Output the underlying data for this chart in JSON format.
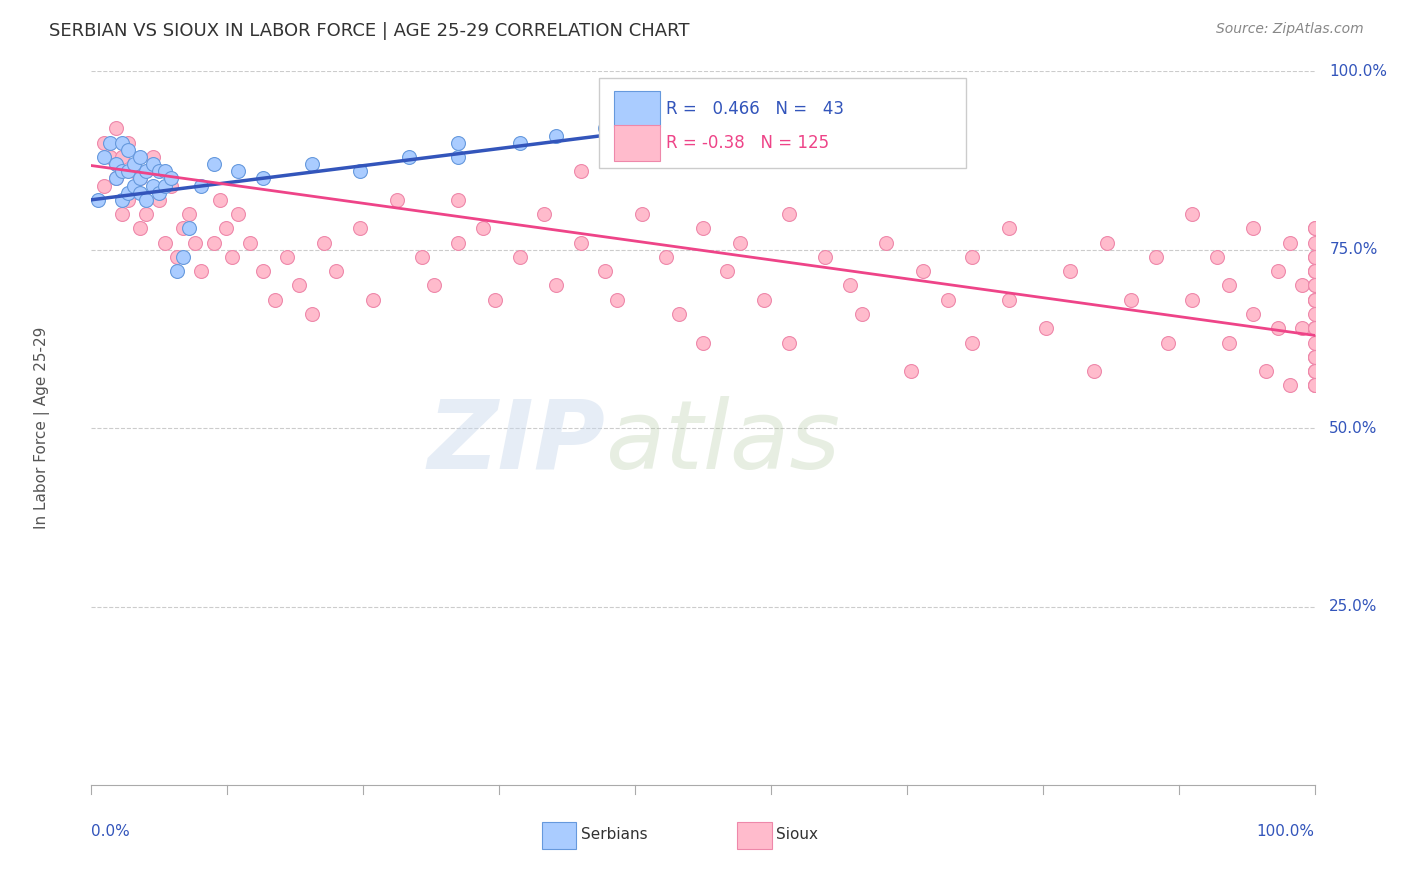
{
  "title": "SERBIAN VS SIOUX IN LABOR FORCE | AGE 25-29 CORRELATION CHART",
  "source_text": "Source: ZipAtlas.com",
  "ylabel": "In Labor Force | Age 25-29",
  "xlim": [
    0.0,
    1.0
  ],
  "ylim": [
    0.0,
    1.0
  ],
  "ytick_labels": [
    "25.0%",
    "50.0%",
    "75.0%",
    "100.0%"
  ],
  "ytick_positions": [
    0.25,
    0.5,
    0.75,
    1.0
  ],
  "r_serbian": 0.466,
  "n_serbian": 43,
  "r_sioux": -0.38,
  "n_sioux": 125,
  "serbian_color": "#aaccff",
  "sioux_color": "#ffbbcc",
  "serbian_edge_color": "#6699dd",
  "sioux_edge_color": "#ee88aa",
  "serbian_line_color": "#3355bb",
  "sioux_line_color": "#ee4488",
  "marker_size": 100,
  "serbian_x": [
    0.005,
    0.01,
    0.015,
    0.02,
    0.02,
    0.025,
    0.025,
    0.025,
    0.03,
    0.03,
    0.03,
    0.035,
    0.035,
    0.04,
    0.04,
    0.04,
    0.045,
    0.045,
    0.05,
    0.05,
    0.055,
    0.055,
    0.06,
    0.06,
    0.065,
    0.07,
    0.075,
    0.08,
    0.09,
    0.1,
    0.12,
    0.14,
    0.18,
    0.22,
    0.26,
    0.3,
    0.3,
    0.35,
    0.38,
    0.42,
    0.48,
    0.55,
    0.65
  ],
  "serbian_y": [
    0.82,
    0.88,
    0.9,
    0.85,
    0.87,
    0.82,
    0.86,
    0.9,
    0.83,
    0.86,
    0.89,
    0.84,
    0.87,
    0.83,
    0.85,
    0.88,
    0.82,
    0.86,
    0.84,
    0.87,
    0.83,
    0.86,
    0.84,
    0.86,
    0.85,
    0.72,
    0.74,
    0.78,
    0.84,
    0.87,
    0.86,
    0.85,
    0.87,
    0.86,
    0.88,
    0.88,
    0.9,
    0.9,
    0.91,
    0.92,
    0.92,
    0.93,
    0.93
  ],
  "sioux_x": [
    0.01,
    0.01,
    0.015,
    0.02,
    0.02,
    0.025,
    0.025,
    0.03,
    0.03,
    0.035,
    0.04,
    0.04,
    0.045,
    0.05,
    0.055,
    0.06,
    0.065,
    0.07,
    0.075,
    0.08,
    0.085,
    0.09,
    0.1,
    0.105,
    0.11,
    0.115,
    0.12,
    0.13,
    0.14,
    0.15,
    0.16,
    0.17,
    0.18,
    0.19,
    0.2,
    0.22,
    0.23,
    0.25,
    0.27,
    0.28,
    0.3,
    0.3,
    0.32,
    0.33,
    0.35,
    0.37,
    0.38,
    0.4,
    0.4,
    0.42,
    0.43,
    0.45,
    0.47,
    0.48,
    0.5,
    0.5,
    0.52,
    0.53,
    0.55,
    0.57,
    0.57,
    0.6,
    0.62,
    0.63,
    0.65,
    0.67,
    0.68,
    0.7,
    0.72,
    0.72,
    0.75,
    0.75,
    0.78,
    0.8,
    0.82,
    0.83,
    0.85,
    0.87,
    0.88,
    0.9,
    0.9,
    0.92,
    0.93,
    0.93,
    0.95,
    0.95,
    0.96,
    0.97,
    0.97,
    0.98,
    0.98,
    0.99,
    0.99,
    1.0,
    1.0,
    1.0,
    1.0,
    1.0,
    1.0,
    1.0,
    1.0,
    1.0,
    1.0,
    1.0,
    1.0,
    1.0,
    1.0,
    1.0,
    1.0,
    1.0,
    1.0,
    1.0,
    1.0,
    1.0,
    1.0,
    1.0,
    1.0,
    1.0,
    1.0,
    1.0,
    1.0
  ],
  "sioux_y": [
    0.9,
    0.84,
    0.88,
    0.85,
    0.92,
    0.8,
    0.88,
    0.82,
    0.9,
    0.86,
    0.78,
    0.85,
    0.8,
    0.88,
    0.82,
    0.76,
    0.84,
    0.74,
    0.78,
    0.8,
    0.76,
    0.72,
    0.76,
    0.82,
    0.78,
    0.74,
    0.8,
    0.76,
    0.72,
    0.68,
    0.74,
    0.7,
    0.66,
    0.76,
    0.72,
    0.78,
    0.68,
    0.82,
    0.74,
    0.7,
    0.76,
    0.82,
    0.78,
    0.68,
    0.74,
    0.8,
    0.7,
    0.76,
    0.86,
    0.72,
    0.68,
    0.8,
    0.74,
    0.66,
    0.78,
    0.62,
    0.72,
    0.76,
    0.68,
    0.8,
    0.62,
    0.74,
    0.7,
    0.66,
    0.76,
    0.58,
    0.72,
    0.68,
    0.74,
    0.62,
    0.78,
    0.68,
    0.64,
    0.72,
    0.58,
    0.76,
    0.68,
    0.74,
    0.62,
    0.8,
    0.68,
    0.74,
    0.7,
    0.62,
    0.78,
    0.66,
    0.58,
    0.72,
    0.64,
    0.76,
    0.56,
    0.7,
    0.64,
    0.78,
    0.6,
    0.68,
    0.74,
    0.56,
    0.72,
    0.64,
    0.58,
    0.76,
    0.62,
    0.7,
    0.58,
    0.74,
    0.64,
    0.68,
    0.56,
    0.72,
    0.6,
    0.78,
    0.64,
    0.56,
    0.7,
    0.6,
    0.66,
    0.72,
    0.58,
    0.64,
    0.68
  ],
  "sioux_regression_start_x": 0.0,
  "sioux_regression_start_y": 0.868,
  "sioux_regression_end_x": 1.0,
  "sioux_regression_end_y": 0.63,
  "serbian_regression_start_x": 0.0,
  "serbian_regression_start_y": 0.82,
  "serbian_regression_end_x": 0.65,
  "serbian_regression_end_y": 0.96
}
